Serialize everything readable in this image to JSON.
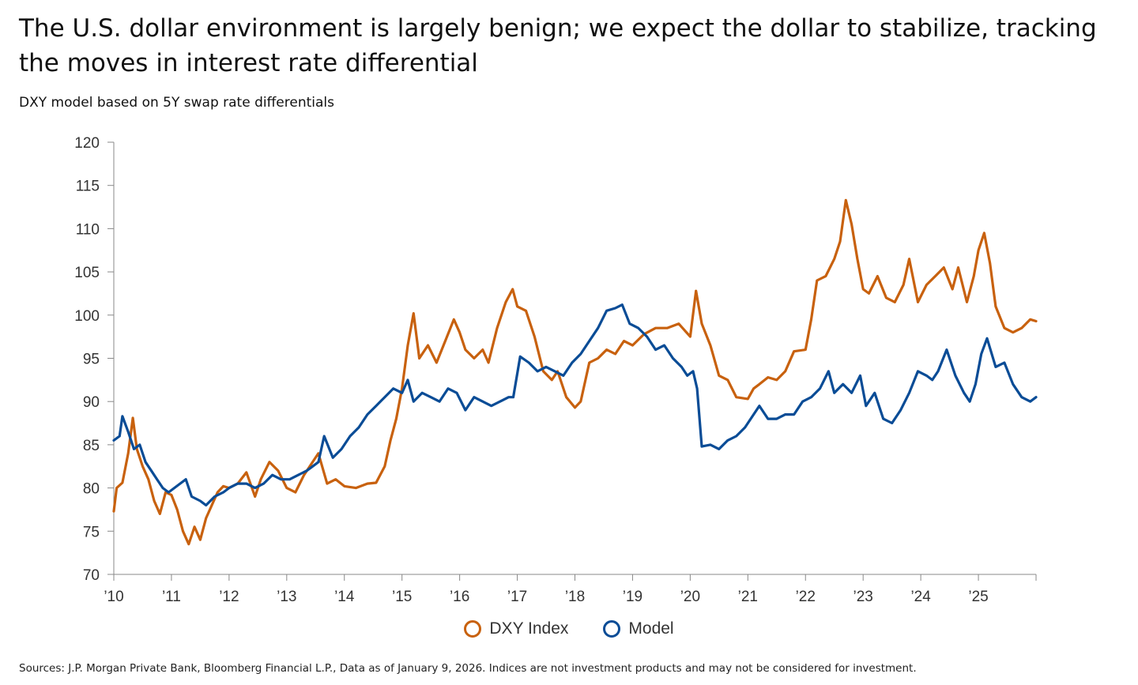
{
  "title": "The U.S. dollar environment is largely benign; we expect the dollar to stabilize, tracking the moves in interest rate differential",
  "subtitle": "DXY model based on 5Y swap rate differentials",
  "source": "Sources: J.P. Morgan Private Bank, Bloomberg Financial L.P., Data as of January 9, 2026.  Indices are not investment products and may not be considered for investment.",
  "colors": {
    "dxy": "#C8610E",
    "model": "#0A4C96",
    "axis": "#888888"
  },
  "chart_data": {
    "type": "line",
    "ylim": [
      70,
      120
    ],
    "yticks": [
      "70",
      "75",
      "80",
      "85",
      "90",
      "95",
      "100",
      "105",
      "110",
      "115",
      "120"
    ],
    "xlim": [
      2010,
      2026
    ],
    "xticks": [
      {
        "x": 2010,
        "label": "’10"
      },
      {
        "x": 2011,
        "label": "’11"
      },
      {
        "x": 2012,
        "label": "’12"
      },
      {
        "x": 2013,
        "label": "’13"
      },
      {
        "x": 2014,
        "label": "’14"
      },
      {
        "x": 2015,
        "label": "’15"
      },
      {
        "x": 2016,
        "label": "’16"
      },
      {
        "x": 2017,
        "label": "’17"
      },
      {
        "x": 2018,
        "label": "’18"
      },
      {
        "x": 2019,
        "label": "’19"
      },
      {
        "x": 2020,
        "label": "’20"
      },
      {
        "x": 2021,
        "label": "’21"
      },
      {
        "x": 2022,
        "label": "’22"
      },
      {
        "x": 2023,
        "label": "’23"
      },
      {
        "x": 2024,
        "label": "’24"
      },
      {
        "x": 2025,
        "label": "’25"
      }
    ],
    "legend_position": "bottom-center",
    "grid": false,
    "series": [
      {
        "name": "DXY Index",
        "color": "#C8610E",
        "x": [
          2010.0,
          2010.05,
          2010.15,
          2010.25,
          2010.33,
          2010.4,
          2010.5,
          2010.6,
          2010.7,
          2010.8,
          2010.9,
          2011.0,
          2011.1,
          2011.2,
          2011.3,
          2011.4,
          2011.5,
          2011.6,
          2011.7,
          2011.8,
          2011.9,
          2012.0,
          2012.15,
          2012.3,
          2012.45,
          2012.55,
          2012.7,
          2012.85,
          2013.0,
          2013.15,
          2013.3,
          2013.45,
          2013.55,
          2013.7,
          2013.85,
          2014.0,
          2014.2,
          2014.4,
          2014.55,
          2014.7,
          2014.8,
          2014.9,
          2015.0,
          2015.1,
          2015.2,
          2015.3,
          2015.45,
          2015.6,
          2015.75,
          2015.9,
          2016.0,
          2016.1,
          2016.25,
          2016.4,
          2016.5,
          2016.65,
          2016.8,
          2016.92,
          2017.0,
          2017.15,
          2017.3,
          2017.45,
          2017.6,
          2017.7,
          2017.85,
          2018.0,
          2018.1,
          2018.25,
          2018.4,
          2018.55,
          2018.7,
          2018.85,
          2019.0,
          2019.2,
          2019.4,
          2019.6,
          2019.8,
          2020.0,
          2020.1,
          2020.2,
          2020.35,
          2020.5,
          2020.65,
          2020.8,
          2021.0,
          2021.1,
          2021.2,
          2021.35,
          2021.5,
          2021.65,
          2021.8,
          2022.0,
          2022.1,
          2022.2,
          2022.35,
          2022.5,
          2022.6,
          2022.7,
          2022.8,
          2022.9,
          2023.0,
          2023.1,
          2023.25,
          2023.4,
          2023.55,
          2023.7,
          2023.8,
          2023.95,
          2024.1,
          2024.25,
          2024.4,
          2024.55,
          2024.65,
          2024.8,
          2024.92,
          2025.0,
          2025.1,
          2025.2,
          2025.3,
          2025.45,
          2025.6,
          2025.75,
          2025.9,
          2026.0
        ],
        "y": [
          77.3,
          80.0,
          80.6,
          84.0,
          88.1,
          84.5,
          82.5,
          81.0,
          78.5,
          77.0,
          79.5,
          79.2,
          77.5,
          75.0,
          73.5,
          75.5,
          74.0,
          76.5,
          78.0,
          79.5,
          80.2,
          80.0,
          80.5,
          81.8,
          79.0,
          81.0,
          83.0,
          82.0,
          80.0,
          79.5,
          81.5,
          83.0,
          84.0,
          80.5,
          81.0,
          80.2,
          80.0,
          80.5,
          80.6,
          82.5,
          85.5,
          88.0,
          91.5,
          96.5,
          100.2,
          95.0,
          96.5,
          94.5,
          97.0,
          99.5,
          98.0,
          96.0,
          95.0,
          96.0,
          94.5,
          98.5,
          101.5,
          103.0,
          101.0,
          100.5,
          97.5,
          93.5,
          92.5,
          93.5,
          90.5,
          89.3,
          90.0,
          94.5,
          95.0,
          96.0,
          95.5,
          97.0,
          96.5,
          97.8,
          98.5,
          98.5,
          99.0,
          97.5,
          102.8,
          99.0,
          96.5,
          93.0,
          92.5,
          90.5,
          90.3,
          91.5,
          92.0,
          92.8,
          92.5,
          93.5,
          95.8,
          96.0,
          99.5,
          104.0,
          104.5,
          106.5,
          108.5,
          113.3,
          110.5,
          106.5,
          103.0,
          102.5,
          104.5,
          102.0,
          101.5,
          103.5,
          106.5,
          101.5,
          103.5,
          104.5,
          105.5,
          103.0,
          105.5,
          101.5,
          104.5,
          107.5,
          109.5,
          106.0,
          101.0,
          98.5,
          98.0,
          98.5,
          99.5,
          99.3
        ]
      },
      {
        "name": "Model",
        "color": "#0A4C96",
        "x": [
          2010.0,
          2010.1,
          2010.15,
          2010.25,
          2010.35,
          2010.45,
          2010.55,
          2010.65,
          2010.75,
          2010.85,
          2010.95,
          2011.05,
          2011.15,
          2011.25,
          2011.35,
          2011.5,
          2011.6,
          2011.75,
          2011.9,
          2012.0,
          2012.15,
          2012.3,
          2012.45,
          2012.6,
          2012.75,
          2012.9,
          2013.05,
          2013.2,
          2013.35,
          2013.45,
          2013.55,
          2013.65,
          2013.8,
          2013.95,
          2014.1,
          2014.25,
          2014.4,
          2014.55,
          2014.7,
          2014.85,
          2015.0,
          2015.1,
          2015.2,
          2015.35,
          2015.5,
          2015.65,
          2015.8,
          2015.95,
          2016.1,
          2016.25,
          2016.4,
          2016.55,
          2016.7,
          2016.85,
          2016.93,
          2017.05,
          2017.2,
          2017.35,
          2017.5,
          2017.65,
          2017.8,
          2017.95,
          2018.1,
          2018.25,
          2018.4,
          2018.55,
          2018.7,
          2018.82,
          2018.95,
          2019.1,
          2019.25,
          2019.4,
          2019.55,
          2019.7,
          2019.85,
          2019.95,
          2020.05,
          2020.12,
          2020.2,
          2020.35,
          2020.5,
          2020.65,
          2020.8,
          2020.95,
          2021.1,
          2021.2,
          2021.35,
          2021.5,
          2021.65,
          2021.8,
          2021.95,
          2022.1,
          2022.25,
          2022.4,
          2022.5,
          2022.65,
          2022.8,
          2022.95,
          2023.05,
          2023.2,
          2023.35,
          2023.5,
          2023.65,
          2023.8,
          2023.95,
          2024.1,
          2024.2,
          2024.3,
          2024.45,
          2024.6,
          2024.75,
          2024.85,
          2024.95,
          2025.05,
          2025.15,
          2025.3,
          2025.45,
          2025.6,
          2025.75,
          2025.9,
          2026.0
        ],
        "y": [
          85.5,
          86.0,
          88.3,
          86.5,
          84.5,
          85.0,
          83.0,
          82.0,
          81.0,
          80.0,
          79.5,
          80.0,
          80.5,
          81.0,
          79.0,
          78.5,
          78.0,
          79.0,
          79.5,
          80.0,
          80.5,
          80.5,
          80.0,
          80.5,
          81.5,
          81.0,
          81.0,
          81.5,
          82.0,
          82.5,
          83.0,
          86.0,
          83.5,
          84.5,
          86.0,
          87.0,
          88.5,
          89.5,
          90.5,
          91.5,
          91.0,
          92.5,
          90.0,
          91.0,
          90.5,
          90.0,
          91.5,
          91.0,
          89.0,
          90.5,
          90.0,
          89.5,
          90.0,
          90.5,
          90.5,
          95.2,
          94.5,
          93.5,
          94.0,
          93.5,
          93.0,
          94.5,
          95.5,
          97.0,
          98.5,
          100.5,
          100.8,
          101.2,
          99.0,
          98.5,
          97.5,
          96.0,
          96.5,
          95.0,
          94.0,
          93.0,
          93.5,
          91.5,
          84.8,
          85.0,
          84.5,
          85.5,
          86.0,
          87.0,
          88.5,
          89.5,
          88.0,
          88.0,
          88.5,
          88.5,
          90.0,
          90.5,
          91.5,
          93.5,
          91.0,
          92.0,
          91.0,
          93.0,
          89.5,
          91.0,
          88.0,
          87.5,
          89.0,
          91.0,
          93.5,
          93.0,
          92.5,
          93.5,
          96.0,
          93.0,
          91.0,
          90.0,
          92.0,
          95.5,
          97.3,
          94.0,
          94.5,
          92.0,
          90.5,
          90.0,
          90.5
        ]
      }
    ]
  }
}
